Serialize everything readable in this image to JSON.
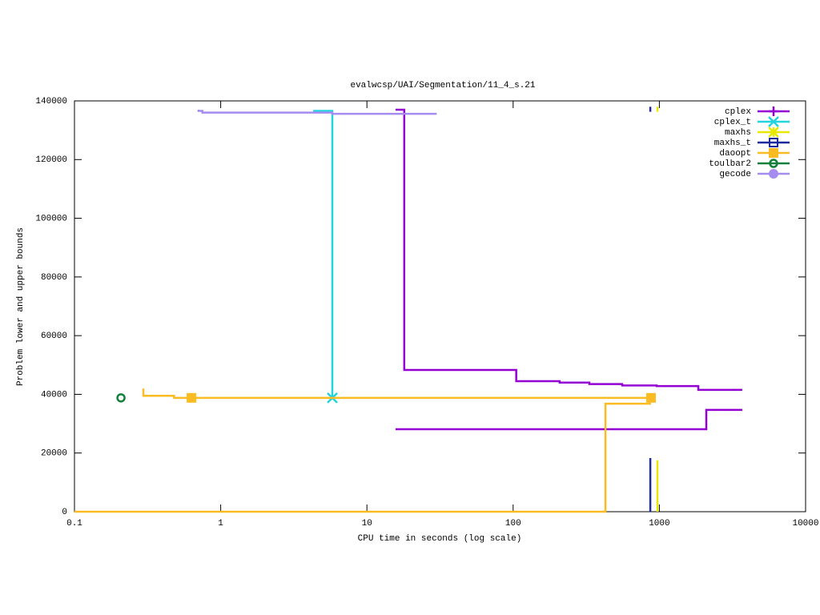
{
  "chart_data": {
    "type": "line",
    "title": "evalwcsp/UAI/Segmentation/11_4_s.21",
    "x_label": "CPU time in seconds (log scale)",
    "y_label": "Problem lower and upper bounds",
    "xlim": [
      0.1,
      10000
    ],
    "xticks": [
      0.1,
      1,
      10,
      100,
      1000,
      10000
    ],
    "xlog": true,
    "ylim": [
      0,
      140000
    ],
    "yticks": [
      0,
      20000,
      40000,
      60000,
      80000,
      100000,
      120000,
      140000
    ],
    "legend": "top-right",
    "series": [
      {
        "name": "cplex",
        "color": "#9400d3",
        "marker": "plus",
        "x": [
          15.7,
          18,
          18,
          105,
          105,
          208,
          208,
          332,
          332,
          557,
          557,
          958,
          958,
          1846,
          1846,
          3690,
          3690,
          15.7,
          2094,
          2094,
          3690
        ],
        "values": [
          137000,
          137000,
          48300,
          48300,
          44500,
          44500,
          44000,
          44000,
          43500,
          43500,
          43000,
          43000,
          42800,
          42800,
          41500,
          41500,
          null,
          28100,
          28100,
          34700,
          34700
        ],
        "points": {
          "x": [],
          "values": []
        }
      },
      {
        "name": "cplex_t",
        "color": "#22d3e0",
        "marker": "x",
        "x": [
          4.29,
          5.8,
          5.8
        ],
        "values": [
          136600,
          136600,
          38800
        ],
        "points": {
          "x": [
            5.8
          ],
          "values": [
            38800
          ]
        }
      },
      {
        "name": "maxhs",
        "color": "#e8e800",
        "marker": "star",
        "x": [
          970,
          970,
          970,
          970,
          970
        ],
        "values": [
          0,
          17500,
          null,
          136300,
          138000
        ],
        "points": {
          "x": [],
          "values": []
        }
      },
      {
        "name": "maxhs_t",
        "color": "#1c2a9c",
        "marker": "square-open",
        "x": [
          867,
          867,
          867,
          867,
          867
        ],
        "values": [
          0,
          18300,
          null,
          136300,
          138000
        ],
        "points": {
          "x": [],
          "values": []
        }
      },
      {
        "name": "daoopt",
        "color": "#fbbb22",
        "marker": "square",
        "x": [
          0.296,
          0.296,
          0.48,
          0.48,
          877,
          877,
          0.1,
          428,
          428,
          877
        ],
        "values": [
          42000,
          39500,
          39500,
          38800,
          38800,
          null,
          0,
          0,
          36800,
          36800
        ],
        "points": {
          "x": [
            0.631,
            877
          ],
          "values": [
            38800,
            38800
          ]
        }
      },
      {
        "name": "toulbar2",
        "color": "#12803a",
        "marker": "circle-open",
        "x": [],
        "values": [],
        "points": {
          "x": [
            0.208
          ],
          "values": [
            38800
          ]
        }
      },
      {
        "name": "gecode",
        "color": "#a58cf0",
        "marker": "circle",
        "x": [
          0.706,
          0.706,
          0.75,
          0.75,
          5.8,
          5.8,
          30
        ],
        "values": [
          137000,
          136600,
          136600,
          136000,
          136000,
          135600,
          135600
        ],
        "points": {
          "x": [],
          "values": []
        }
      }
    ]
  }
}
